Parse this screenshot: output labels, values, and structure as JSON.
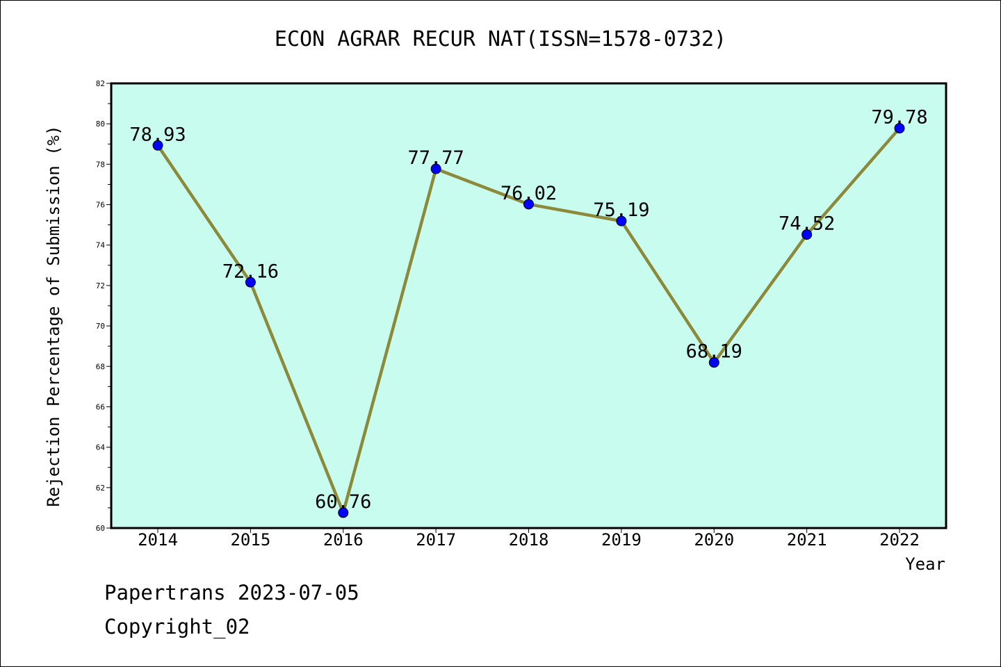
{
  "chart_data": {
    "type": "line",
    "title": "ECON AGRAR RECUR NAT(ISSN=1578-0732)",
    "xlabel": "Year",
    "ylabel": "Rejection Percentage of Submission (%)",
    "categories": [
      "2014",
      "2015",
      "2016",
      "2017",
      "2018",
      "2019",
      "2020",
      "2021",
      "2022"
    ],
    "series": [
      {
        "values": [
          78.93,
          72.16,
          60.76,
          77.77,
          76.02,
          75.19,
          68.19,
          74.52,
          79.78
        ]
      }
    ],
    "data_labels": [
      "78.93",
      "72.16",
      "60.76",
      "77.77",
      "76.02",
      "75.19",
      "68.19",
      "74.52",
      "79.78"
    ],
    "ylim": [
      60,
      82
    ],
    "y_ticks": [
      "60",
      "62",
      "64",
      "66",
      "68",
      "70",
      "72",
      "74",
      "76",
      "78",
      "80",
      "82"
    ],
    "grid": false,
    "colors": {
      "plot_background": "#c8fcee",
      "line": "#8c8a3a",
      "marker": "#0000ff"
    }
  },
  "footer": {
    "line1": "Papertrans 2023-07-05",
    "line2": "Copyright_02"
  }
}
